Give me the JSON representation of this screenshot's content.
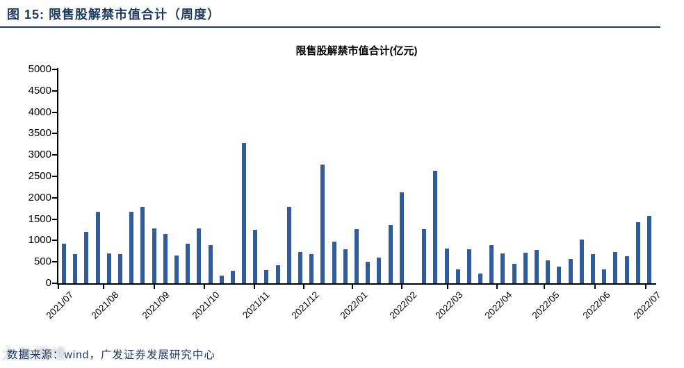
{
  "header": {
    "title": "图 15:  限售股解禁市值合计（周度）"
  },
  "chart_data": {
    "type": "bar",
    "title": "限售股解禁市值合计(亿元)",
    "xlabel": "",
    "ylabel": "",
    "unit": "亿元",
    "frequency": "weekly",
    "ylim": [
      0,
      5000
    ],
    "y_tick_step": 500,
    "grid": false,
    "legend_position": "none",
    "bar_color": "#2F5C9D",
    "values": [
      930,
      680,
      1200,
      1680,
      700,
      680,
      1680,
      1780,
      1290,
      1160,
      650,
      930,
      1290,
      890,
      180,
      300,
      3280,
      1250,
      310,
      420,
      1790,
      730,
      680,
      2780,
      980,
      800,
      1270,
      510,
      600,
      1360,
      2130,
      0,
      1270,
      2630,
      820,
      330,
      800,
      230,
      890,
      700,
      460,
      720,
      780,
      540,
      390,
      570,
      1020,
      680,
      330,
      730,
      640,
      1430,
      1570
    ],
    "x_ticks": [
      {
        "label": "2021/07",
        "week_pos": 0
      },
      {
        "label": "2021/08",
        "week_pos": 4.0
      },
      {
        "label": "2021/09",
        "week_pos": 8.5
      },
      {
        "label": "2021/10",
        "week_pos": 13.0
      },
      {
        "label": "2021/11",
        "week_pos": 17.4
      },
      {
        "label": "2021/12",
        "week_pos": 21.8
      },
      {
        "label": "2022/01",
        "week_pos": 26.1
      },
      {
        "label": "2022/02",
        "week_pos": 30.5
      },
      {
        "label": "2022/03",
        "week_pos": 34.6
      },
      {
        "label": "2022/04",
        "week_pos": 39.0
      },
      {
        "label": "2022/05",
        "week_pos": 43.2
      },
      {
        "label": "2022/06",
        "week_pos": 47.7
      },
      {
        "label": "2022/07",
        "week_pos": 52.2
      }
    ]
  },
  "footer": {
    "source": "数据来源：wind，广发证券发展研究中心",
    "watermark": "大数据境"
  },
  "colors": {
    "header_text": "#1E3A5F",
    "header_rule": "#1E3A5F",
    "bar": "#2F5C9D",
    "axis": "#000000",
    "chart_title_text": "#000000",
    "tick_label_text": "#000000",
    "footer_text": "#1F3864",
    "watermark_gray": "#AAB0B8"
  }
}
